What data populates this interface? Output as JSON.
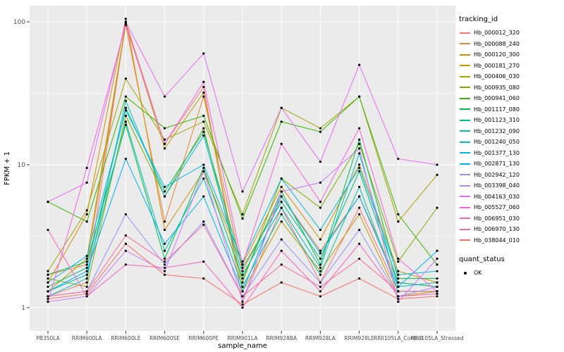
{
  "figure": {
    "background": "#FFFFFF",
    "panel_color": "#EBEBEB",
    "grid_color": "#FFFFFF"
  },
  "axes": {
    "x_label": "sample_name",
    "y_label": "FPKM + 1",
    "y_ticks": [
      "1",
      "10",
      "100"
    ]
  },
  "legend": {
    "tracking_title": "tracking_id",
    "quant_title": "quant_status",
    "quant_items": [
      {
        "label": "OK",
        "symbol": "point",
        "color": "#000000"
      }
    ]
  },
  "chart_data": {
    "type": "line",
    "title": "",
    "xlabel": "sample_name",
    "ylabel": "FPKM + 1",
    "y_scale": "log10",
    "ylim": [
      0.7,
      130
    ],
    "y_ticks": [
      1,
      10,
      100
    ],
    "y_minor_ticks": [
      3.1623,
      31.623
    ],
    "grid": true,
    "legend_position": "right",
    "points_color": "#000000",
    "categories": [
      "PB350LA",
      "RRIM600LA",
      "RRIM600LE",
      "RRIM600SE",
      "RRIM600PE",
      "RRIM901LA",
      "RRIM928BA",
      "RRIM928LA",
      "RRIM928LE",
      "RRII105LA_Control",
      "RRII105LA_Stressed"
    ],
    "series": [
      {
        "name": "Hb_000012_320",
        "color": "#F8766D",
        "values": [
          1.2,
          1.5,
          100,
          14,
          35,
          1.1,
          5,
          1.5,
          5,
          1.3,
          1.3
        ]
      },
      {
        "name": "Hb_000088_240",
        "color": "#EA8331",
        "values": [
          1.7,
          2.0,
          95,
          4,
          30,
          1.8,
          6,
          2.5,
          6,
          1.5,
          1.4
        ]
      },
      {
        "name": "Hb_000120_300",
        "color": "#D89000",
        "values": [
          1.5,
          4.5,
          105,
          3.5,
          9,
          2.0,
          7,
          3.0,
          10,
          1.8,
          1.5
        ]
      },
      {
        "name": "Hb_000181_270",
        "color": "#C09B00",
        "values": [
          1.3,
          2.2,
          98,
          13,
          32,
          1.3,
          4,
          1.8,
          4.5,
          1.2,
          1.3
        ]
      },
      {
        "name": "Hb_000406_030",
        "color": "#A3A500",
        "values": [
          1.8,
          4.8,
          40,
          15,
          20,
          4.5,
          25,
          18,
          30,
          4,
          8.5
        ]
      },
      {
        "name": "Hb_000935_080",
        "color": "#7CAE00",
        "values": [
          1.6,
          1.4,
          22,
          6,
          18,
          1.5,
          8,
          5,
          14,
          2.1,
          5
        ]
      },
      {
        "name": "Hb_000941_060",
        "color": "#39B600",
        "values": [
          5.5,
          4.0,
          30,
          18,
          22,
          4.2,
          20,
          17,
          30,
          4.5,
          2.0
        ]
      },
      {
        "name": "Hb_001117_080",
        "color": "#00BB4E",
        "values": [
          1.7,
          2.1,
          19,
          2.2,
          9.5,
          1.6,
          6.5,
          2.0,
          15,
          1.6,
          1.6
        ]
      },
      {
        "name": "Hb_001123_310",
        "color": "#00BF7D",
        "values": [
          1.4,
          1.9,
          25,
          6.5,
          17,
          1.9,
          5.5,
          2.2,
          9,
          1.5,
          1.4
        ]
      },
      {
        "name": "Hb_001232_090",
        "color": "#00C1A3",
        "values": [
          1.3,
          1.7,
          20,
          2.5,
          8,
          1.4,
          4.5,
          1.7,
          7,
          1.3,
          1.3
        ]
      },
      {
        "name": "Hb_001240_050",
        "color": "#00BFC4",
        "values": [
          1.2,
          1.6,
          28,
          6,
          16,
          1.7,
          5,
          1.9,
          12,
          1.4,
          1.5
        ]
      },
      {
        "name": "Hb_001377_130",
        "color": "#00BAE0",
        "values": [
          1.5,
          2.3,
          24,
          7,
          10,
          2.1,
          8,
          3.5,
          9.5,
          1.7,
          1.8
        ]
      },
      {
        "name": "Hb_002871_130",
        "color": "#00B0F6",
        "values": [
          1.3,
          1.8,
          11,
          2.8,
          6,
          1.3,
          6,
          2.4,
          6,
          1.4,
          2.5
        ]
      },
      {
        "name": "Hb_002942_120",
        "color": "#9590FF",
        "values": [
          1.2,
          1.3,
          4.5,
          2.0,
          4,
          1.2,
          3,
          1.5,
          3.5,
          1.2,
          1.4
        ]
      },
      {
        "name": "Hb_003398_040",
        "color": "#C77CFF",
        "values": [
          1.1,
          1.2,
          2.5,
          1.8,
          9,
          1.1,
          6.5,
          7.5,
          13,
          1.1,
          2.2
        ]
      },
      {
        "name": "Hb_004163_030",
        "color": "#E76BF3",
        "values": [
          5.5,
          7.5,
          100,
          30,
          60,
          6.5,
          25,
          10.5,
          50,
          11,
          10
        ]
      },
      {
        "name": "Hb_005527_060",
        "color": "#FA62DB",
        "values": [
          1.1,
          9.5,
          95,
          14,
          38,
          2.0,
          14,
          5.5,
          18,
          2.2,
          1.3
        ]
      },
      {
        "name": "Hb_006951_030",
        "color": "#FF62BC",
        "values": [
          3.5,
          1.2,
          2.0,
          1.9,
          2.1,
          1.0,
          2.5,
          1.3,
          2.8,
          1.2,
          1.25
        ]
      },
      {
        "name": "Hb_006970_130",
        "color": "#FF6A98",
        "values": [
          1.2,
          1.3,
          3.2,
          2.1,
          3.8,
          1.2,
          2.0,
          1.4,
          2.2,
          1.3,
          1.3
        ]
      },
      {
        "name": "Hb_038044_010",
        "color": "#FF6C67",
        "values": [
          1.15,
          1.25,
          2.8,
          1.7,
          1.6,
          1.05,
          1.5,
          1.2,
          1.6,
          1.15,
          1.2
        ]
      }
    ]
  }
}
